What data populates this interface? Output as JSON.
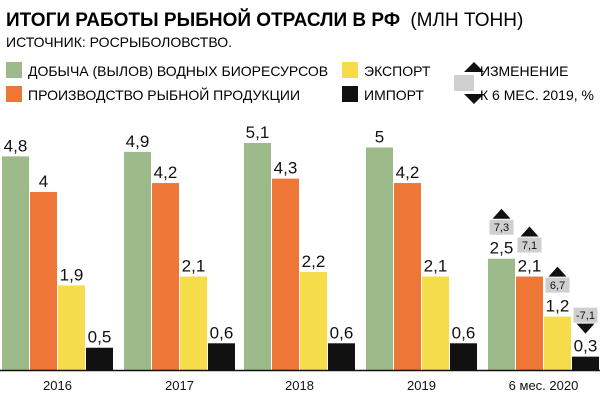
{
  "chart_data": {
    "type": "bar",
    "title": "ИТОГИ РАБОТЫ РЫБНОЙ ОТРАСЛИ В РФ",
    "title_unit": "(МЛН ТОНН)",
    "source": "ИСТОЧНИК: РОСРЫБОЛОВСТВО.",
    "categories": [
      "2016",
      "2017",
      "2018",
      "2019",
      "6 мес. 2020"
    ],
    "series": [
      {
        "name": "ДОБЫЧА (ВЫЛОВ) ВОДНЫХ БИОРЕСУРСОВ",
        "color": "#9dbb8a",
        "values": [
          4.8,
          4.9,
          5.1,
          5,
          2.5
        ],
        "labels": [
          "4,8",
          "4,9",
          "5,1",
          "5",
          "2,5"
        ]
      },
      {
        "name": "ПРОИЗВОДСТВО РЫБНОЙ ПРОДУКЦИИ",
        "color": "#ee7636",
        "values": [
          4,
          4.2,
          4.3,
          4.2,
          2.1
        ],
        "labels": [
          "4",
          "4,2",
          "4,3",
          "4,2",
          "2,1"
        ]
      },
      {
        "name": "ЭКСПОРТ",
        "color": "#f4dc4a",
        "values": [
          1.9,
          2.1,
          2.2,
          2.1,
          1.2
        ],
        "labels": [
          "1,9",
          "2,1",
          "2,2",
          "2,1",
          "1,2"
        ]
      },
      {
        "name": "ИМПОРТ",
        "color": "#111111",
        "values": [
          0.5,
          0.6,
          0.6,
          0.6,
          0.3
        ],
        "labels": [
          "0,5",
          "0,6",
          "0,6",
          "0,6",
          "0,3"
        ]
      }
    ],
    "change_legend": {
      "line1": "ИЗМЕНЕНИЕ",
      "line2": "К 6 МЕС. 2019, %"
    },
    "changes": [
      {
        "series": 0,
        "category": 4,
        "label": "7,3",
        "direction": "up"
      },
      {
        "series": 1,
        "category": 4,
        "label": "7,1",
        "direction": "up"
      },
      {
        "series": 2,
        "category": 4,
        "label": "6,7",
        "direction": "up"
      },
      {
        "series": 3,
        "category": 4,
        "label": "-7,1",
        "direction": "down"
      }
    ],
    "ylim": [
      0,
      5.1
    ],
    "grid": false,
    "legend_position": "top"
  }
}
